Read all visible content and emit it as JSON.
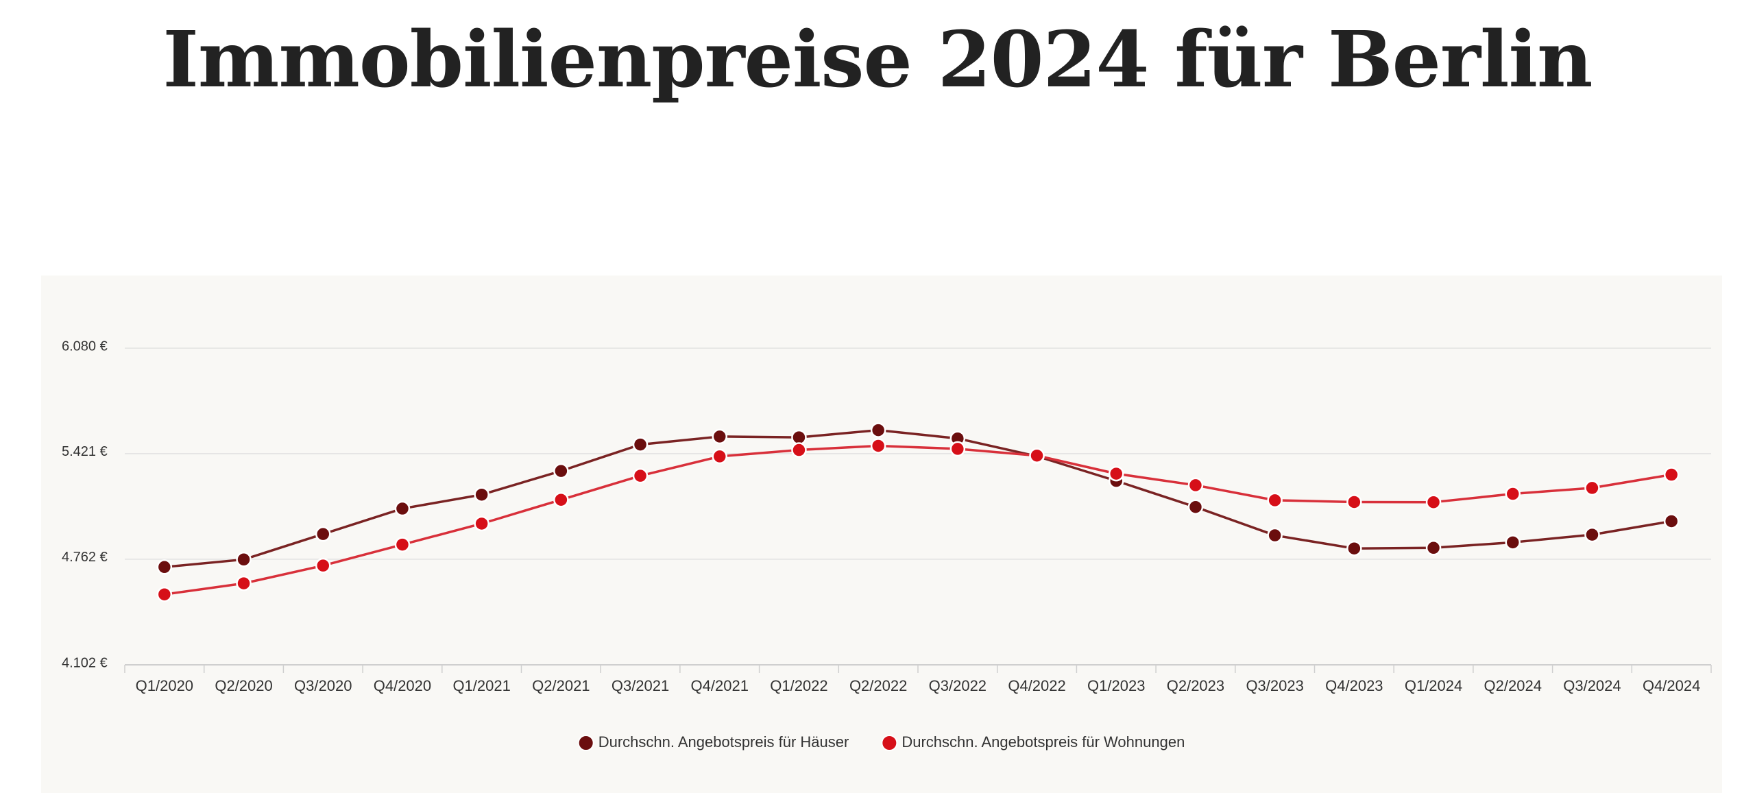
{
  "title": "Immobilienpreise 2024 für Berlin",
  "chart_data": {
    "type": "line",
    "title": "Immobilienpreise 2024 für Berlin",
    "xlabel": "",
    "ylabel": "",
    "grid": true,
    "legend_position": "bottom-center",
    "ylim": [
      4102,
      6080
    ],
    "y_ticks": [
      {
        "value": 6080,
        "label": "6.080 €"
      },
      {
        "value": 5421,
        "label": "5.421 €"
      },
      {
        "value": 4762,
        "label": "4.762 €"
      },
      {
        "value": 4102,
        "label": "4.102 €"
      }
    ],
    "categories": [
      "Q1/2020",
      "Q2/2020",
      "Q3/2020",
      "Q4/2020",
      "Q1/2021",
      "Q2/2021",
      "Q3/2021",
      "Q4/2021",
      "Q1/2022",
      "Q2/2022",
      "Q3/2022",
      "Q4/2022",
      "Q1/2023",
      "Q2/2023",
      "Q3/2023",
      "Q4/2023",
      "Q1/2024",
      "Q2/2024",
      "Q3/2024",
      "Q4/2024"
    ],
    "series": [
      {
        "name": "Durchschn. Angebotspreis für Häuser",
        "color": "#6b0e0e",
        "line_color": "#7a2323",
        "values": [
          4713,
          4760,
          4919,
          5078,
          5165,
          5313,
          5478,
          5528,
          5523,
          5568,
          5516,
          5405,
          5251,
          5088,
          4911,
          4829,
          4833,
          4867,
          4915,
          4999
        ]
      },
      {
        "name": "Durchschn. Angebotspreis für Wohnungen",
        "color": "#d60f18",
        "line_color": "#d8303a",
        "values": [
          4542,
          4611,
          4722,
          4853,
          4984,
          5133,
          5283,
          5404,
          5444,
          5470,
          5451,
          5409,
          5296,
          5224,
          5130,
          5119,
          5118,
          5170,
          5207,
          5290
        ]
      }
    ]
  }
}
